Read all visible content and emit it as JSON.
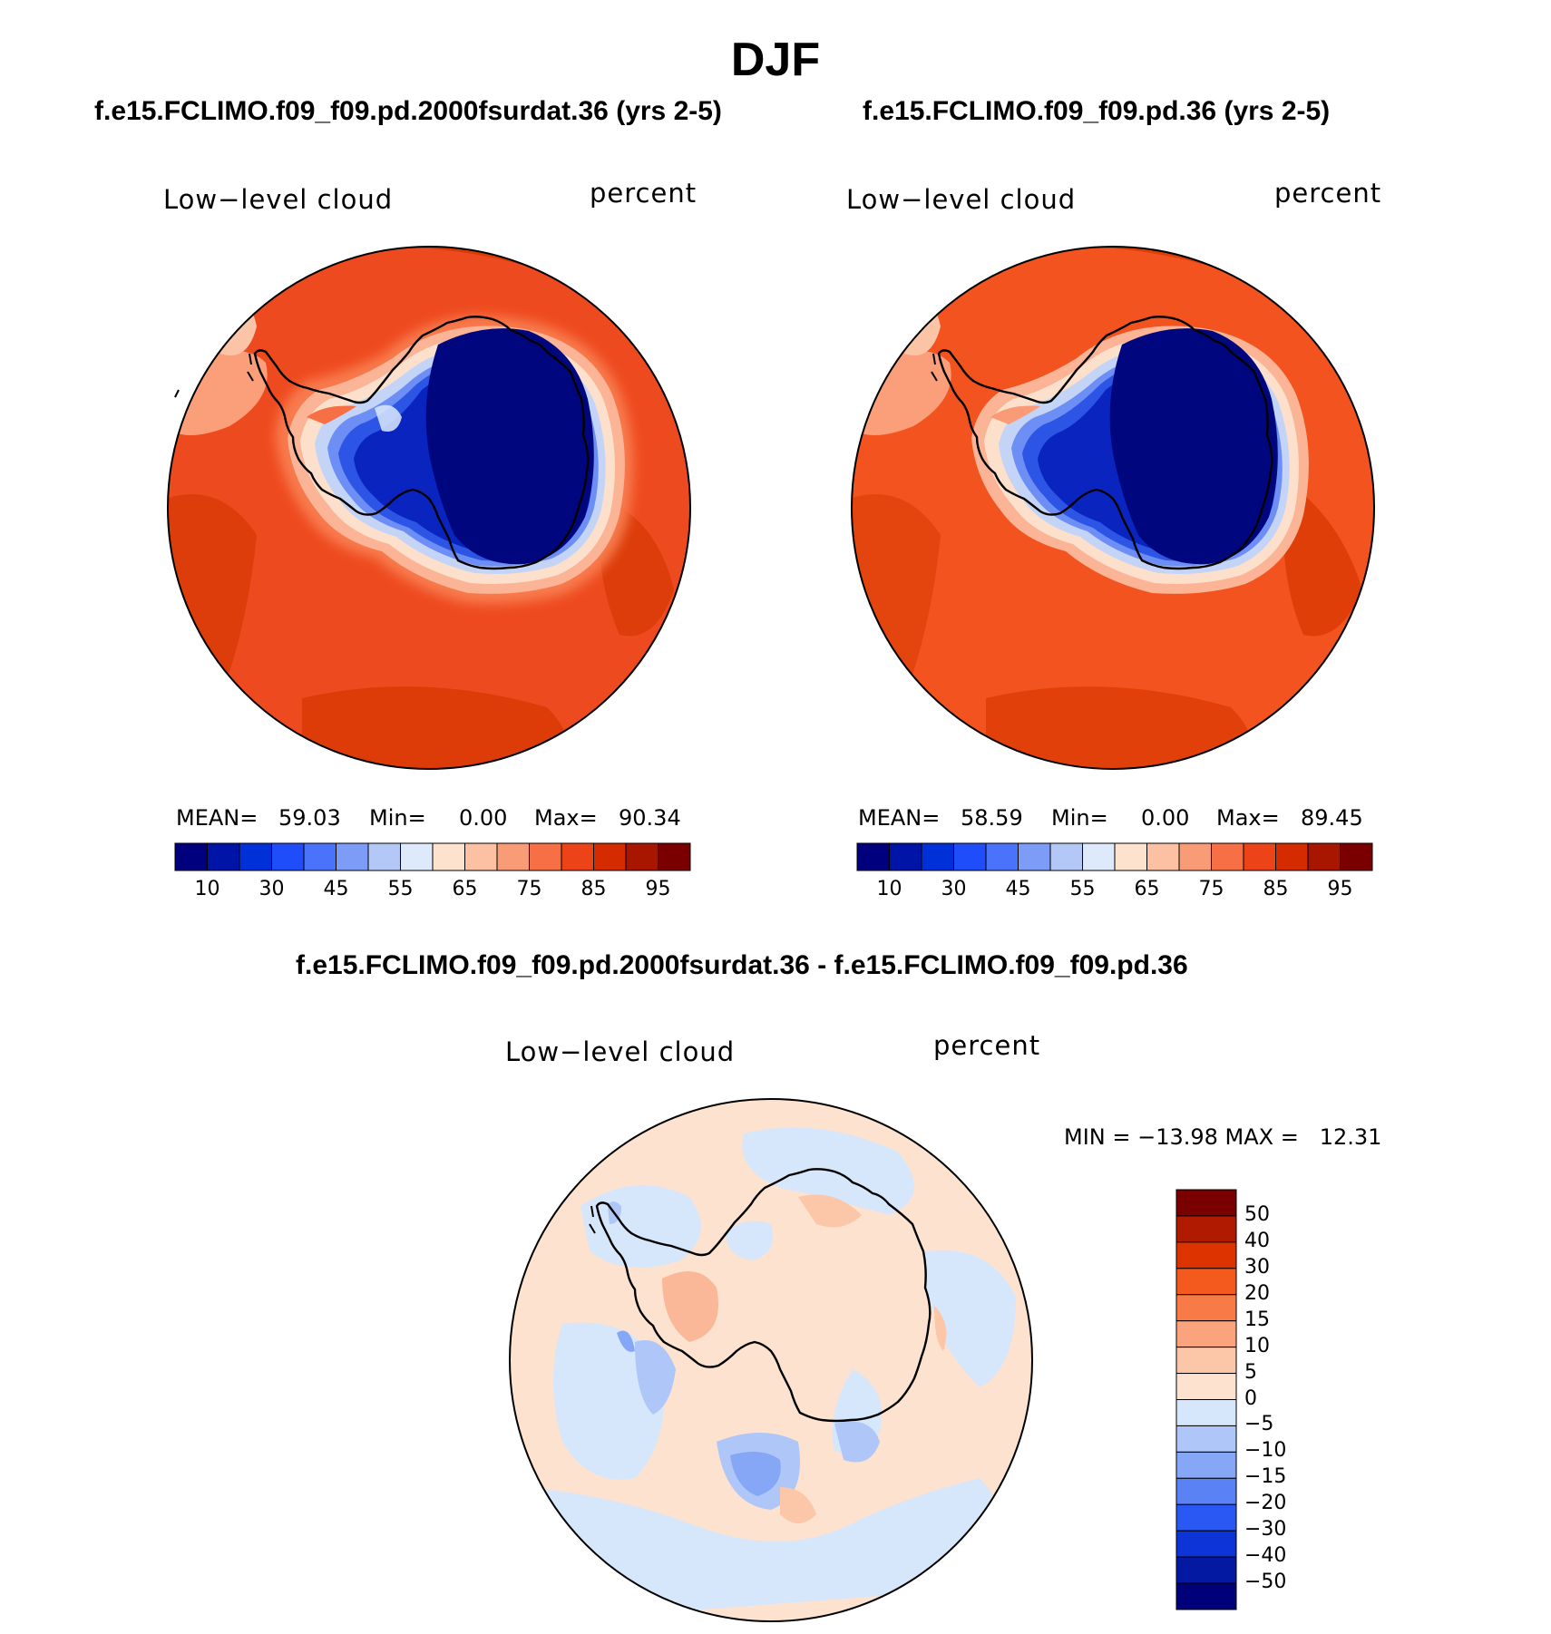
{
  "season": "DJF",
  "panels": [
    {
      "title": "f.e15.FCLIMO.f09_f09.pd.2000fsurdat.36 (yrs 2-5)",
      "variable": "Low−level cloud",
      "units": "percent",
      "stats": {
        "mean_label": "MEAN=",
        "mean": "59.03",
        "min_label": "Min=",
        "min": "0.00",
        "max_label": "Max=",
        "max": "90.34"
      }
    },
    {
      "title": "f.e15.FCLIMO.f09_f09.pd.36 (yrs 2-5)",
      "variable": "Low−level cloud",
      "units": "percent",
      "stats": {
        "mean_label": "MEAN=",
        "mean": "58.59",
        "min_label": "Min=",
        "min": "0.00",
        "max_label": "Max=",
        "max": "89.45"
      }
    }
  ],
  "abs_colorbar": {
    "colors": [
      "#00007f",
      "#0014a8",
      "#0031d8",
      "#1f4dfa",
      "#4a72fa",
      "#7d9cf8",
      "#b3c8f7",
      "#dceafb",
      "#fde2cd",
      "#fcc0a2",
      "#fa9b78",
      "#f66f45",
      "#ec4318",
      "#d42b00",
      "#a81600",
      "#7a0000"
    ],
    "labels": [
      "10",
      "30",
      "45",
      "55",
      "65",
      "75",
      "85",
      "95"
    ]
  },
  "diff_panel": {
    "title": "f.e15.FCLIMO.f09_f09.pd.2000fsurdat.36 - f.e15.FCLIMO.f09_f09.pd.36",
    "variable": "Low−level cloud",
    "units": "percent",
    "range_text": "MIN = −13.98 MAX =   12.31"
  },
  "diff_colorbar": {
    "colors": [
      "#7a0000",
      "#b01b00",
      "#dd3300",
      "#f45a1e",
      "#f87b47",
      "#fba37c",
      "#fcc6a8",
      "#fde3cf",
      "#d6e6fb",
      "#aec6f8",
      "#86a6f6",
      "#5a82f5",
      "#2a58f3",
      "#0c34d6",
      "#0319a2",
      "#00007a"
    ],
    "labels": [
      "50",
      "40",
      "30",
      "20",
      "15",
      "10",
      "5",
      "0",
      "−5",
      "−10",
      "−15",
      "−20",
      "−30",
      "−40",
      "−50"
    ]
  }
}
